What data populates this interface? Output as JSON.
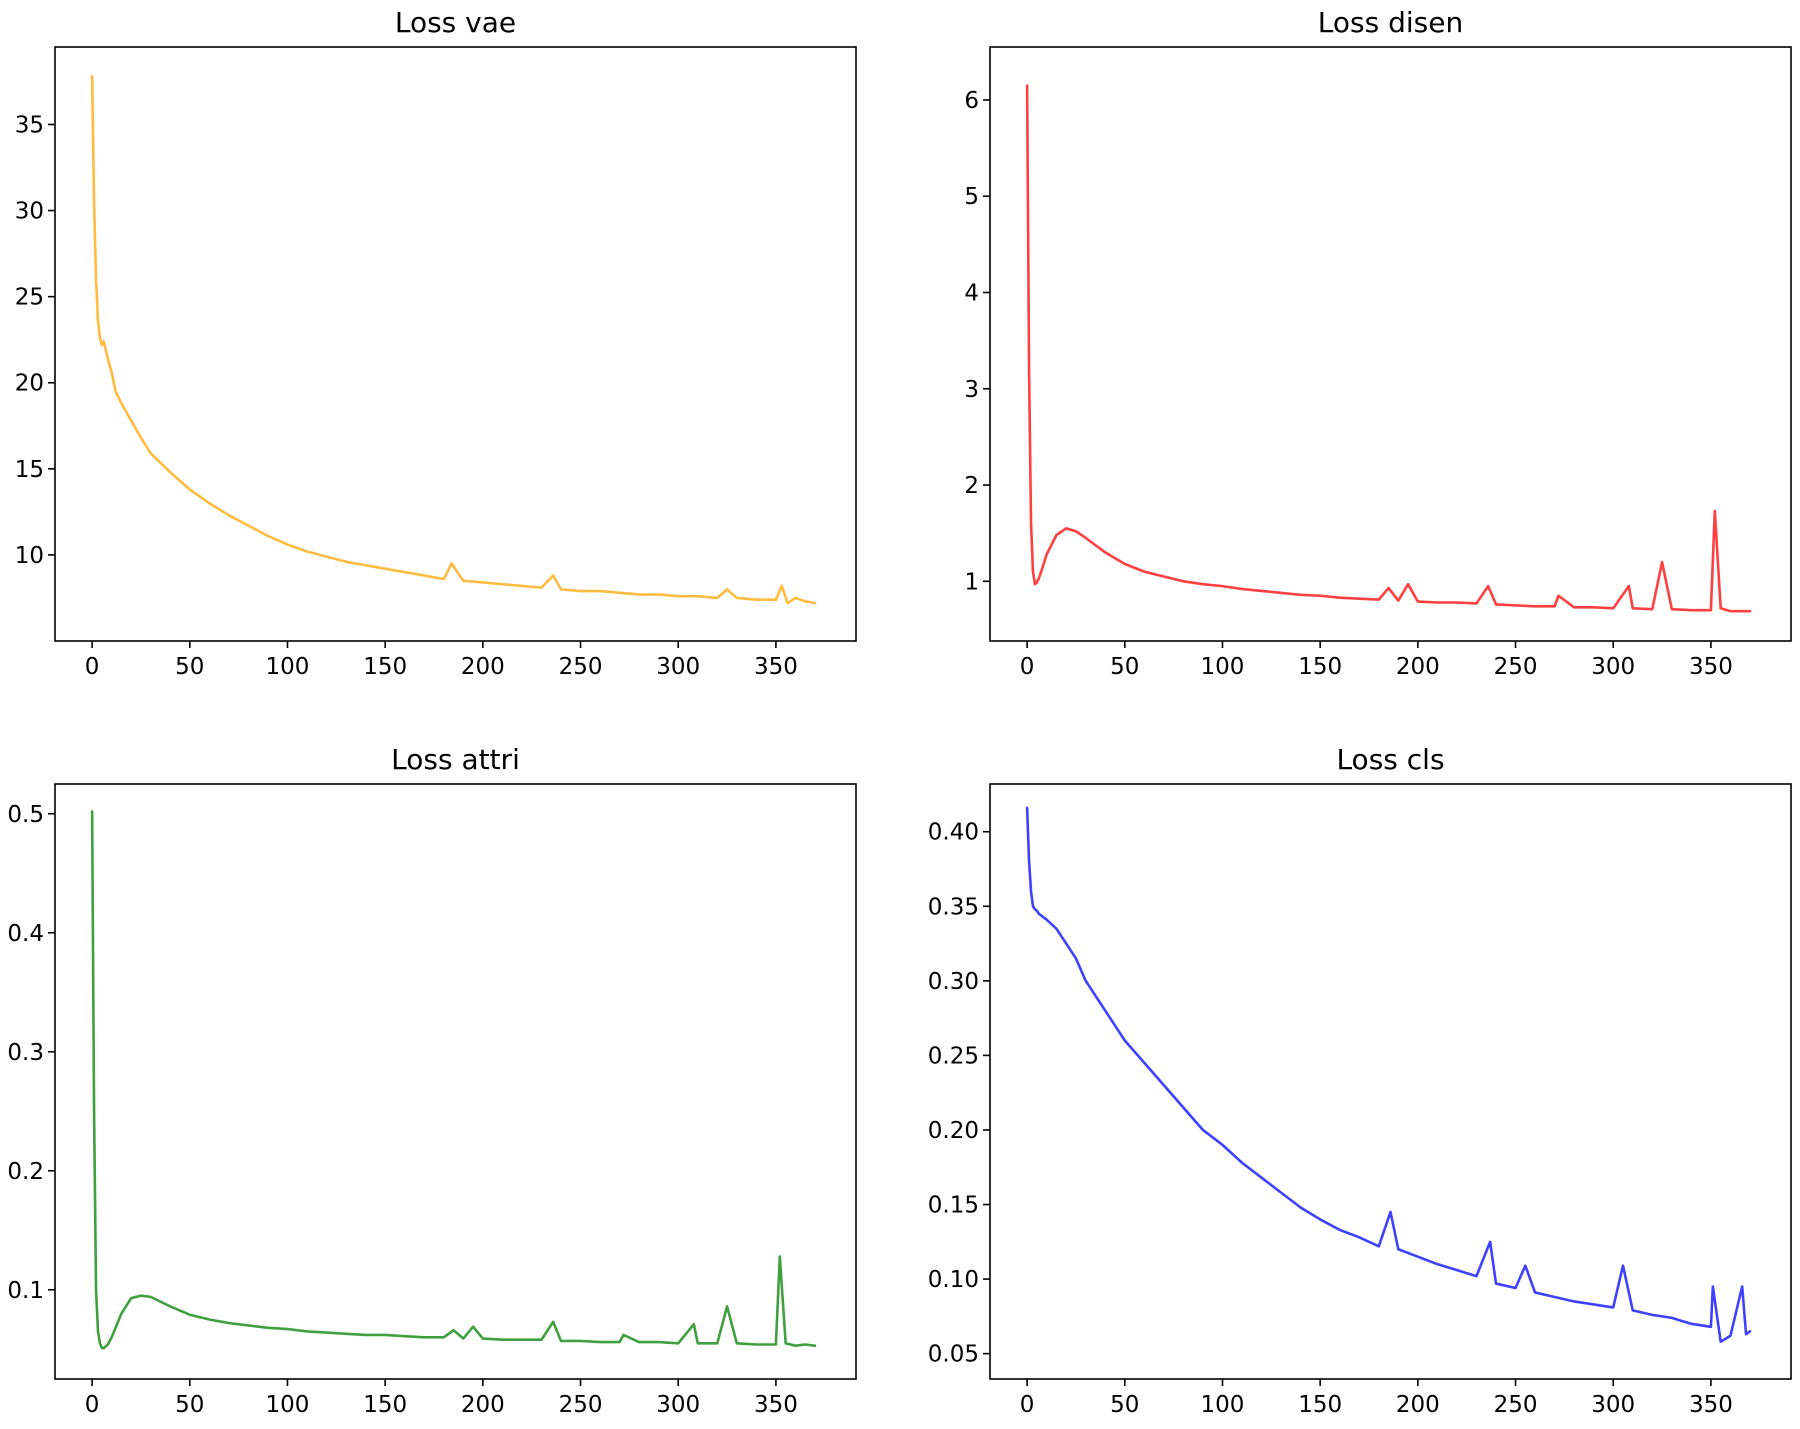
{
  "chart_data": [
    {
      "type": "line",
      "title": "Loss vae",
      "color": "#FFA500",
      "xlim": [
        -19,
        391
      ],
      "ylim": [
        5.0,
        39.5
      ],
      "xticks": [
        0,
        50,
        100,
        150,
        200,
        250,
        300,
        350
      ],
      "yticks": [
        10,
        15,
        20,
        25,
        30,
        35
      ],
      "x": [
        0,
        1,
        2,
        3,
        4,
        5,
        6,
        8,
        10,
        12,
        15,
        20,
        25,
        30,
        40,
        50,
        60,
        70,
        80,
        90,
        100,
        110,
        120,
        130,
        140,
        150,
        160,
        170,
        180,
        184,
        190,
        200,
        210,
        220,
        230,
        236,
        240,
        250,
        260,
        270,
        280,
        290,
        300,
        310,
        320,
        325,
        330,
        340,
        350,
        353,
        356,
        360,
        365,
        370
      ],
      "y": [
        37.8,
        30.5,
        26.0,
        23.6,
        22.6,
        22.2,
        22.4,
        21.4,
        20.6,
        19.5,
        18.8,
        17.8,
        16.8,
        15.9,
        14.8,
        13.8,
        13.0,
        12.3,
        11.7,
        11.1,
        10.6,
        10.2,
        9.9,
        9.6,
        9.4,
        9.2,
        9.0,
        8.8,
        8.6,
        9.5,
        8.5,
        8.4,
        8.3,
        8.2,
        8.1,
        8.8,
        8.0,
        7.9,
        7.9,
        7.8,
        7.7,
        7.7,
        7.6,
        7.6,
        7.5,
        8.0,
        7.5,
        7.4,
        7.4,
        8.2,
        7.2,
        7.5,
        7.3,
        7.2
      ]
    },
    {
      "type": "line",
      "title": "Loss disen",
      "color": "#FF0000",
      "xlim": [
        -19,
        391
      ],
      "ylim": [
        0.38,
        6.55
      ],
      "xticks": [
        0,
        50,
        100,
        150,
        200,
        250,
        300,
        350
      ],
      "yticks": [
        1,
        2,
        3,
        4,
        5,
        6
      ],
      "x": [
        0,
        1,
        2,
        3,
        4,
        5,
        6,
        8,
        10,
        15,
        20,
        25,
        30,
        40,
        50,
        60,
        70,
        80,
        90,
        100,
        110,
        120,
        130,
        140,
        150,
        160,
        170,
        180,
        185,
        190,
        195,
        200,
        210,
        220,
        230,
        236,
        240,
        250,
        260,
        270,
        272,
        280,
        290,
        300,
        308,
        310,
        320,
        325,
        330,
        340,
        350,
        352,
        355,
        360,
        365,
        370
      ],
      "y": [
        6.15,
        3.2,
        1.6,
        1.1,
        0.97,
        0.99,
        1.03,
        1.15,
        1.28,
        1.48,
        1.55,
        1.52,
        1.45,
        1.3,
        1.18,
        1.1,
        1.05,
        1.0,
        0.97,
        0.95,
        0.92,
        0.9,
        0.88,
        0.86,
        0.85,
        0.83,
        0.82,
        0.81,
        0.93,
        0.8,
        0.97,
        0.79,
        0.78,
        0.78,
        0.77,
        0.95,
        0.76,
        0.75,
        0.74,
        0.74,
        0.85,
        0.73,
        0.73,
        0.72,
        0.95,
        0.72,
        0.71,
        1.2,
        0.71,
        0.7,
        0.7,
        1.73,
        0.72,
        0.69,
        0.69,
        0.69
      ]
    },
    {
      "type": "line",
      "title": "Loss attri",
      "color": "#008000",
      "xlim": [
        -19,
        391
      ],
      "ylim": [
        0.025,
        0.525
      ],
      "xticks": [
        0,
        50,
        100,
        150,
        200,
        250,
        300,
        350
      ],
      "yticks": [
        0.1,
        0.2,
        0.3,
        0.4,
        0.5
      ],
      "x": [
        0,
        1,
        2,
        3,
        4,
        5,
        6,
        8,
        10,
        15,
        20,
        25,
        30,
        40,
        50,
        60,
        70,
        80,
        90,
        100,
        110,
        120,
        130,
        140,
        150,
        160,
        170,
        180,
        185,
        190,
        195,
        200,
        210,
        220,
        230,
        236,
        240,
        250,
        260,
        270,
        272,
        280,
        290,
        300,
        308,
        310,
        320,
        325,
        330,
        340,
        350,
        352,
        355,
        360,
        365,
        370
      ],
      "y": [
        0.502,
        0.25,
        0.1,
        0.065,
        0.055,
        0.051,
        0.051,
        0.054,
        0.06,
        0.08,
        0.093,
        0.095,
        0.094,
        0.086,
        0.079,
        0.075,
        0.072,
        0.07,
        0.068,
        0.067,
        0.065,
        0.064,
        0.063,
        0.062,
        0.062,
        0.061,
        0.06,
        0.06,
        0.066,
        0.059,
        0.069,
        0.059,
        0.058,
        0.058,
        0.058,
        0.073,
        0.057,
        0.057,
        0.056,
        0.056,
        0.062,
        0.056,
        0.056,
        0.055,
        0.071,
        0.055,
        0.055,
        0.086,
        0.055,
        0.054,
        0.054,
        0.128,
        0.055,
        0.053,
        0.054,
        0.053
      ]
    },
    {
      "type": "line",
      "title": "Loss cls",
      "color": "#0000FF",
      "xlim": [
        -19,
        391
      ],
      "ylim": [
        0.033,
        0.432
      ],
      "xticks": [
        0,
        50,
        100,
        150,
        200,
        250,
        300,
        350
      ],
      "yticks": [
        0.05,
        0.1,
        0.15,
        0.2,
        0.25,
        0.3,
        0.35,
        0.4
      ],
      "x": [
        0,
        1,
        2,
        3,
        4,
        5,
        6,
        8,
        10,
        15,
        20,
        25,
        30,
        40,
        50,
        60,
        70,
        80,
        90,
        100,
        110,
        120,
        130,
        140,
        150,
        160,
        170,
        180,
        186,
        190,
        200,
        210,
        220,
        230,
        237,
        240,
        250,
        255,
        260,
        270,
        280,
        290,
        300,
        305,
        310,
        320,
        330,
        340,
        350,
        351,
        355,
        360,
        366,
        368,
        370
      ],
      "y": [
        0.416,
        0.38,
        0.36,
        0.35,
        0.348,
        0.347,
        0.345,
        0.343,
        0.341,
        0.335,
        0.325,
        0.315,
        0.3,
        0.28,
        0.26,
        0.245,
        0.23,
        0.215,
        0.2,
        0.19,
        0.178,
        0.168,
        0.158,
        0.148,
        0.14,
        0.133,
        0.128,
        0.122,
        0.145,
        0.12,
        0.115,
        0.11,
        0.106,
        0.102,
        0.125,
        0.097,
        0.094,
        0.109,
        0.091,
        0.088,
        0.085,
        0.083,
        0.081,
        0.109,
        0.079,
        0.076,
        0.074,
        0.07,
        0.068,
        0.095,
        0.058,
        0.062,
        0.095,
        0.063,
        0.065
      ]
    }
  ]
}
